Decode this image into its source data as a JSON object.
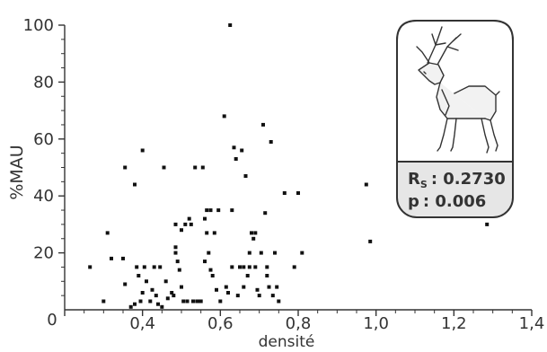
{
  "chart_data": {
    "type": "scatter",
    "xlabel": "densité",
    "ylabel": "%MAU",
    "xlim": [
      0.2,
      1.4
    ],
    "ylim": [
      0,
      100
    ],
    "x_ticks": [
      "0",
      "0,4",
      "0,6",
      "0,8",
      "1,0",
      "1,2",
      "1,4"
    ],
    "y_ticks": [
      "20",
      "40",
      "60",
      "80",
      "100"
    ],
    "annotation": {
      "icon": "caribou-icon",
      "rs_label": "R",
      "rs_sub": "S",
      "rs_value": ": 0.2730",
      "p_label": "p",
      "p_value": ": 0.006"
    },
    "colors": {
      "points": "#111111",
      "axis": "#333333",
      "box_fill": "#e6e6e6",
      "box_stroke": "#333333"
    },
    "points": [
      [
        0.265,
        15
      ],
      [
        0.3,
        3
      ],
      [
        0.31,
        27
      ],
      [
        0.32,
        18
      ],
      [
        0.35,
        18
      ],
      [
        0.355,
        50
      ],
      [
        0.355,
        9
      ],
      [
        0.37,
        1
      ],
      [
        0.38,
        2
      ],
      [
        0.38,
        44
      ],
      [
        0.385,
        15
      ],
      [
        0.39,
        12
      ],
      [
        0.395,
        3
      ],
      [
        0.4,
        6
      ],
      [
        0.4,
        56
      ],
      [
        0.405,
        15
      ],
      [
        0.41,
        10
      ],
      [
        0.42,
        3
      ],
      [
        0.425,
        7
      ],
      [
        0.43,
        15
      ],
      [
        0.435,
        5
      ],
      [
        0.44,
        2
      ],
      [
        0.445,
        15
      ],
      [
        0.45,
        1
      ],
      [
        0.455,
        50
      ],
      [
        0.46,
        10
      ],
      [
        0.465,
        4
      ],
      [
        0.475,
        6
      ],
      [
        0.48,
        5
      ],
      [
        0.485,
        30
      ],
      [
        0.485,
        20
      ],
      [
        0.485,
        22
      ],
      [
        0.49,
        17
      ],
      [
        0.495,
        14
      ],
      [
        0.5,
        8
      ],
      [
        0.5,
        28
      ],
      [
        0.505,
        3
      ],
      [
        0.51,
        30
      ],
      [
        0.515,
        3
      ],
      [
        0.52,
        32
      ],
      [
        0.525,
        30
      ],
      [
        0.53,
        3
      ],
      [
        0.535,
        50
      ],
      [
        0.54,
        3
      ],
      [
        0.545,
        3
      ],
      [
        0.55,
        3
      ],
      [
        0.555,
        50
      ],
      [
        0.56,
        32
      ],
      [
        0.56,
        17
      ],
      [
        0.565,
        35
      ],
      [
        0.565,
        27
      ],
      [
        0.57,
        20
      ],
      [
        0.575,
        35
      ],
      [
        0.575,
        14
      ],
      [
        0.58,
        12
      ],
      [
        0.585,
        27
      ],
      [
        0.59,
        7
      ],
      [
        0.595,
        35
      ],
      [
        0.6,
        3
      ],
      [
        0.61,
        68
      ],
      [
        0.615,
        8
      ],
      [
        0.62,
        6
      ],
      [
        0.625,
        100
      ],
      [
        0.63,
        15
      ],
      [
        0.63,
        35
      ],
      [
        0.635,
        57
      ],
      [
        0.64,
        53
      ],
      [
        0.645,
        5
      ],
      [
        0.65,
        15
      ],
      [
        0.655,
        56
      ],
      [
        0.66,
        8
      ],
      [
        0.66,
        15
      ],
      [
        0.665,
        47
      ],
      [
        0.67,
        12
      ],
      [
        0.675,
        15
      ],
      [
        0.675,
        20
      ],
      [
        0.68,
        27
      ],
      [
        0.685,
        25
      ],
      [
        0.69,
        27
      ],
      [
        0.69,
        15
      ],
      [
        0.695,
        7
      ],
      [
        0.7,
        5
      ],
      [
        0.705,
        20
      ],
      [
        0.71,
        65
      ],
      [
        0.715,
        34
      ],
      [
        0.72,
        15
      ],
      [
        0.72,
        12
      ],
      [
        0.725,
        8
      ],
      [
        0.73,
        59
      ],
      [
        0.735,
        5
      ],
      [
        0.74,
        20
      ],
      [
        0.745,
        8
      ],
      [
        0.75,
        3
      ],
      [
        0.765,
        41
      ],
      [
        0.79,
        15
      ],
      [
        0.8,
        41
      ],
      [
        0.81,
        20
      ],
      [
        0.975,
        44
      ],
      [
        0.985,
        24
      ],
      [
        1.285,
        30
      ]
    ]
  }
}
